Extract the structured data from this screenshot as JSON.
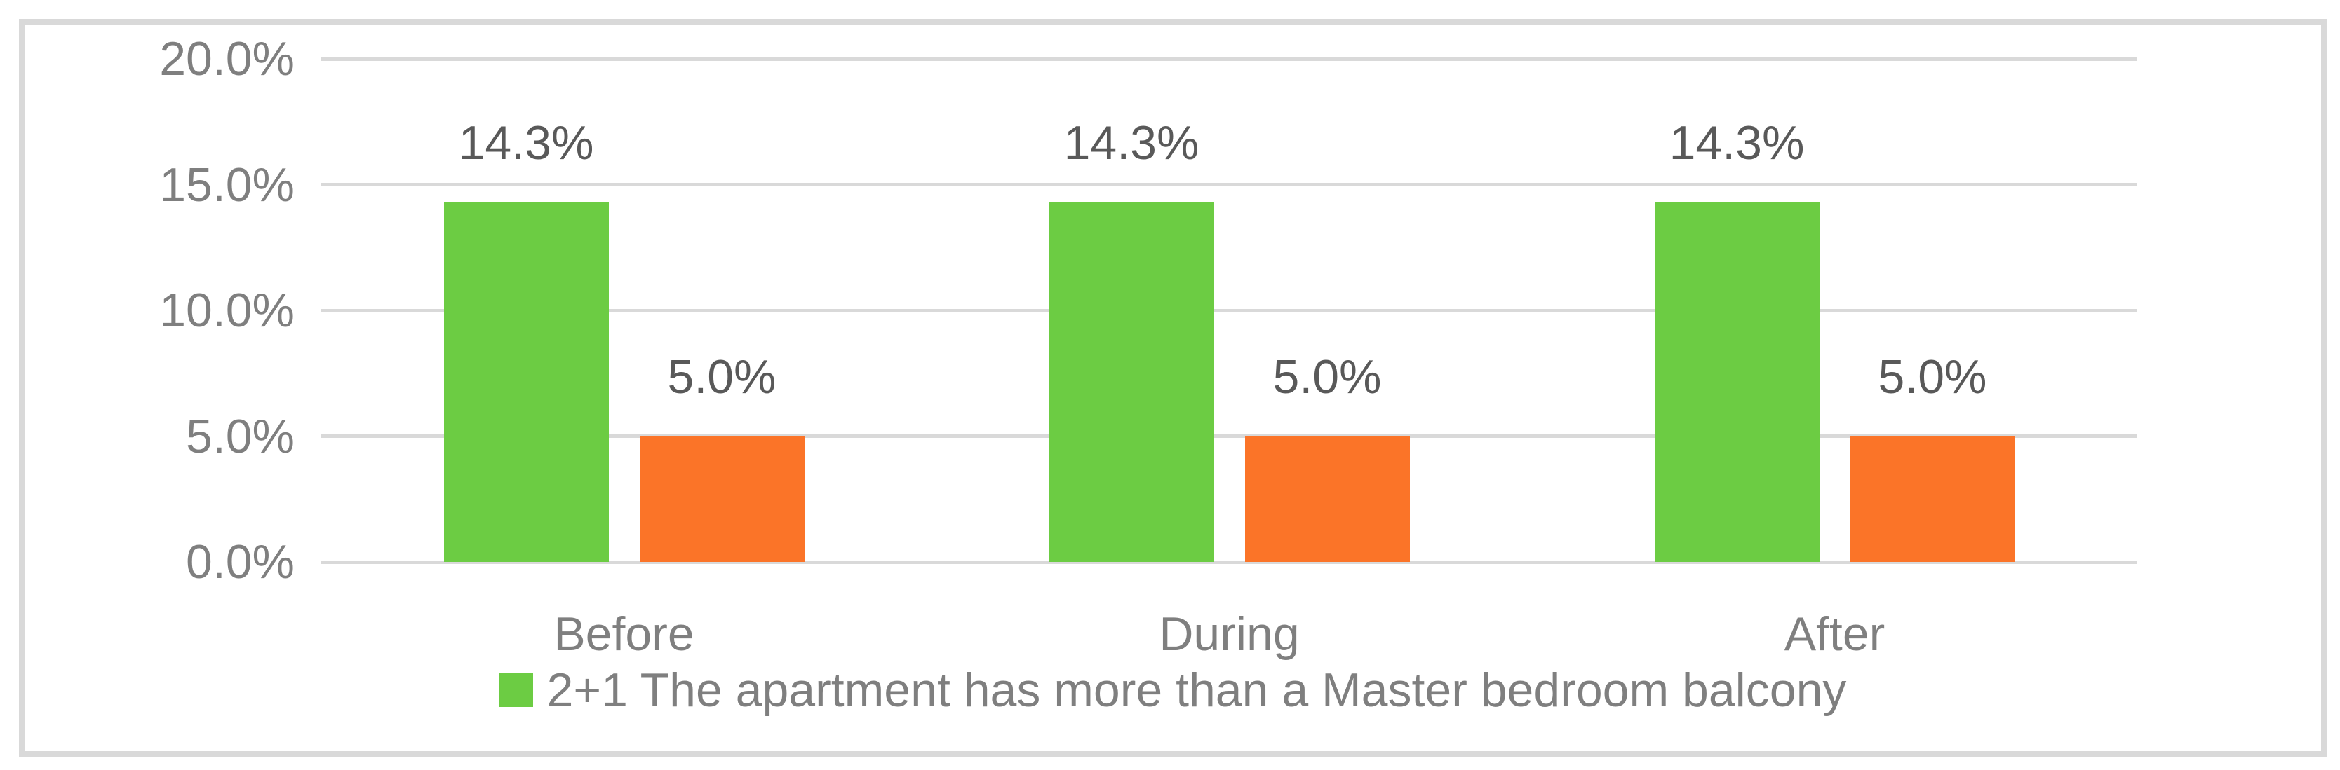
{
  "chart_data": {
    "type": "bar",
    "categories": [
      "Before",
      "During",
      "After"
    ],
    "series": [
      {
        "name": "2+1 The apartment has more than a Master bedroom balcony",
        "color": "#6CCC43",
        "values": [
          14.3,
          14.3,
          14.3
        ],
        "data_labels": [
          "14.3%",
          "14.3%",
          "14.3%"
        ]
      },
      {
        "name": "",
        "color": "#FB7428",
        "values": [
          5.0,
          5.0,
          5.0
        ],
        "data_labels": [
          "5.0%",
          "5.0%",
          "5.0%"
        ]
      }
    ],
    "title": "",
    "xlabel": "",
    "ylabel": "",
    "ylim": [
      0,
      20
    ],
    "y_ticks": [
      "20.0%",
      "15.0%",
      "10.0%",
      "5.0%",
      "0.0%"
    ],
    "grid": true,
    "legend": {
      "position": "bottom",
      "items": [
        {
          "label": "2+1 The apartment has more than a Master bedroom balcony",
          "color": "#6CCC43"
        }
      ]
    }
  },
  "colors": {
    "gridline": "#D9D9D9",
    "chart_border": "#D9D9D9",
    "axis_text": "#7F7F7F",
    "data_label_text": "#595959",
    "green_series": "#6CCC43",
    "orange_series": "#FB7428",
    "background": "#FFFFFF"
  }
}
